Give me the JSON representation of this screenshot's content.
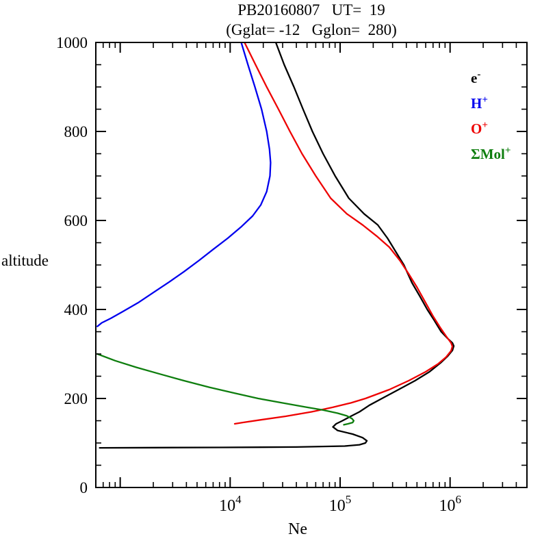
{
  "chart_data": {
    "type": "line",
    "title": "PB20160807  UT= 19  (Gglat= -12  Gglon= 280)",
    "title_line1": "PB20160807   UT=  19",
    "title_line2": "(Gglat= -12   Gglon=  280)",
    "xlabel": "Ne",
    "ylabel": "altitude",
    "xscale": "log",
    "xlim": [
      600,
      5000000
    ],
    "ylim": [
      0,
      1000
    ],
    "x_major_exponents": [
      3,
      4,
      5,
      6
    ],
    "x_labeled_exponents": [
      4,
      5,
      6
    ],
    "y_major_ticks": [
      0,
      200,
      400,
      600,
      800,
      1000
    ],
    "y_minor_step": 50,
    "grid": false,
    "legend_position": "top-right-inside",
    "series": [
      {
        "id": "e",
        "name": "e-",
        "legend_base": "e",
        "legend_sup": "-",
        "color": "#000000",
        "points": [
          [
            26000,
            1000
          ],
          [
            31000,
            950
          ],
          [
            38000,
            900
          ],
          [
            46000,
            850
          ],
          [
            56000,
            800
          ],
          [
            70000,
            750
          ],
          [
            90000,
            700
          ],
          [
            120000,
            650
          ],
          [
            165000,
            615
          ],
          [
            220000,
            590
          ],
          [
            270000,
            560
          ],
          [
            320000,
            530
          ],
          [
            380000,
            500
          ],
          [
            450000,
            460
          ],
          [
            530000,
            430
          ],
          [
            620000,
            400
          ],
          [
            720000,
            375
          ],
          [
            830000,
            350
          ],
          [
            950000,
            335
          ],
          [
            1050000,
            325
          ],
          [
            1080000,
            318
          ],
          [
            1050000,
            308
          ],
          [
            950000,
            295
          ],
          [
            820000,
            280
          ],
          [
            650000,
            260
          ],
          [
            480000,
            240
          ],
          [
            340000,
            220
          ],
          [
            240000,
            200
          ],
          [
            185000,
            185
          ],
          [
            150000,
            170
          ],
          [
            125000,
            160
          ],
          [
            105000,
            150
          ],
          [
            92000,
            143
          ],
          [
            86000,
            136
          ],
          [
            95000,
            128
          ],
          [
            130000,
            120
          ],
          [
            160000,
            112
          ],
          [
            175000,
            105
          ],
          [
            170000,
            100
          ],
          [
            150000,
            96
          ],
          [
            110000,
            93
          ],
          [
            40000,
            91
          ],
          [
            8000,
            90
          ],
          [
            2000,
            89.5
          ],
          [
            650,
            89
          ]
        ]
      },
      {
        "id": "hplus",
        "name": "H+",
        "legend_base": "H",
        "legend_sup": "+",
        "color": "#0000ee",
        "points": [
          [
            12600,
            1000
          ],
          [
            14500,
            950
          ],
          [
            16800,
            900
          ],
          [
            19300,
            850
          ],
          [
            21500,
            800
          ],
          [
            22800,
            760
          ],
          [
            23300,
            730
          ],
          [
            23000,
            700
          ],
          [
            21500,
            665
          ],
          [
            19000,
            635
          ],
          [
            16000,
            610
          ],
          [
            12500,
            585
          ],
          [
            9500,
            560
          ],
          [
            7000,
            535
          ],
          [
            5200,
            510
          ],
          [
            3800,
            485
          ],
          [
            2800,
            462
          ],
          [
            2000,
            438
          ],
          [
            1450,
            415
          ],
          [
            1050,
            395
          ],
          [
            820,
            380
          ],
          [
            680,
            370
          ],
          [
            620,
            362
          ]
        ]
      },
      {
        "id": "oplus",
        "name": "O+",
        "legend_base": "O",
        "legend_sup": "+",
        "color": "#ee0000",
        "points": [
          [
            13500,
            1000
          ],
          [
            17000,
            950
          ],
          [
            21500,
            900
          ],
          [
            27500,
            850
          ],
          [
            35000,
            800
          ],
          [
            45000,
            750
          ],
          [
            60000,
            700
          ],
          [
            82000,
            650
          ],
          [
            115000,
            615
          ],
          [
            160000,
            590
          ],
          [
            215000,
            565
          ],
          [
            280000,
            540
          ],
          [
            350000,
            510
          ],
          [
            420000,
            480
          ],
          [
            500000,
            450
          ],
          [
            600000,
            415
          ],
          [
            700000,
            385
          ],
          [
            810000,
            360
          ],
          [
            920000,
            340
          ],
          [
            1020000,
            325
          ],
          [
            1050000,
            317
          ],
          [
            1020000,
            307
          ],
          [
            920000,
            293
          ],
          [
            780000,
            278
          ],
          [
            600000,
            260
          ],
          [
            420000,
            240
          ],
          [
            280000,
            220
          ],
          [
            170000,
            200
          ],
          [
            125000,
            190
          ],
          [
            85000,
            180
          ],
          [
            55000,
            170
          ],
          [
            32000,
            160
          ],
          [
            19000,
            152
          ],
          [
            13000,
            146
          ],
          [
            11000,
            143
          ]
        ]
      },
      {
        "id": "molplus",
        "name": "SMol+",
        "legend_base": "ΣMol",
        "legend_sup": "+",
        "color": "#0e7e0e",
        "points": [
          [
            620,
            300
          ],
          [
            900,
            285
          ],
          [
            1400,
            270
          ],
          [
            2300,
            255
          ],
          [
            3800,
            240
          ],
          [
            6500,
            225
          ],
          [
            11000,
            212
          ],
          [
            18000,
            200
          ],
          [
            30000,
            190
          ],
          [
            48000,
            181
          ],
          [
            70000,
            174
          ],
          [
            95000,
            167
          ],
          [
            115000,
            161
          ],
          [
            128000,
            155
          ],
          [
            133000,
            150
          ],
          [
            130000,
            146
          ],
          [
            118000,
            143
          ],
          [
            108000,
            141
          ]
        ]
      }
    ]
  }
}
